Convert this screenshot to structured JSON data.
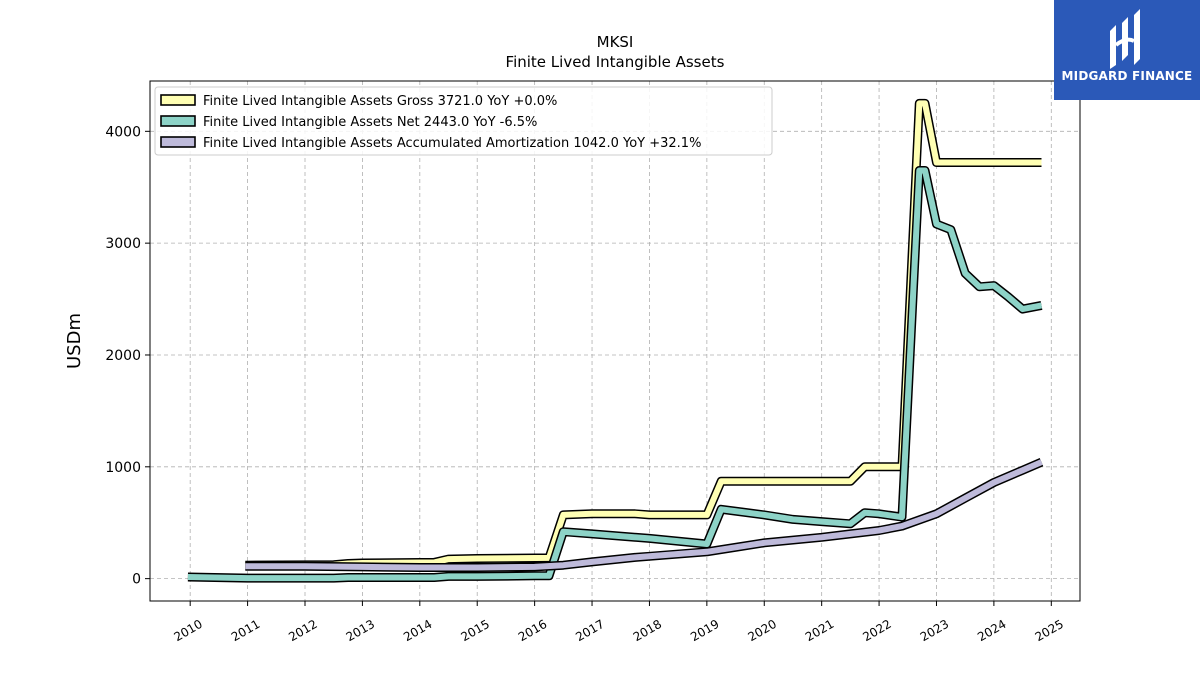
{
  "chart_data": {
    "type": "line",
    "title": "MKSI",
    "subtitle": "Finite Lived Intangible Assets",
    "ylabel": "USDm",
    "xlabel": "",
    "xlim": [
      2009.3,
      2025.5
    ],
    "ylim": [
      -200,
      4450
    ],
    "yticks": [
      0,
      1000,
      2000,
      3000,
      4000
    ],
    "xticks": [
      "2010",
      "2011",
      "2012",
      "2013",
      "2014",
      "2015",
      "2016",
      "2017",
      "2018",
      "2019",
      "2020",
      "2021",
      "2022",
      "2023",
      "2024",
      "2025"
    ],
    "grid": true,
    "legend_position": "top-left",
    "series": [
      {
        "name": "Finite Lived Intangible Assets Gross  3721.0 YoY +0.0%",
        "color": "#ffffb3",
        "points": [
          [
            2010.96,
            120
          ],
          [
            2012.5,
            125
          ],
          [
            2012.75,
            135
          ],
          [
            2013.0,
            140
          ],
          [
            2014.25,
            145
          ],
          [
            2014.5,
            175
          ],
          [
            2015.0,
            180
          ],
          [
            2016.25,
            185
          ],
          [
            2016.5,
            570
          ],
          [
            2017.0,
            580
          ],
          [
            2017.75,
            580
          ],
          [
            2018.0,
            570
          ],
          [
            2019.0,
            570
          ],
          [
            2019.25,
            870
          ],
          [
            2021.5,
            870
          ],
          [
            2021.75,
            1000
          ],
          [
            2022.4,
            1000
          ],
          [
            2022.7,
            4250
          ],
          [
            2022.8,
            4250
          ],
          [
            2023.0,
            3721
          ],
          [
            2024.83,
            3721
          ]
        ]
      },
      {
        "name": "Finite Lived Intangible Assets Net  2443.0 YoY -6.5%",
        "color": "#8dd3c7",
        "points": [
          [
            2009.96,
            15
          ],
          [
            2011.0,
            5
          ],
          [
            2012.0,
            5
          ],
          [
            2012.5,
            5
          ],
          [
            2012.75,
            10
          ],
          [
            2013.0,
            10
          ],
          [
            2014.25,
            10
          ],
          [
            2014.5,
            20
          ],
          [
            2015.0,
            20
          ],
          [
            2016.0,
            25
          ],
          [
            2016.25,
            25
          ],
          [
            2016.5,
            420
          ],
          [
            2017.0,
            400
          ],
          [
            2018.0,
            360
          ],
          [
            2019.0,
            310
          ],
          [
            2019.25,
            620
          ],
          [
            2020.0,
            570
          ],
          [
            2020.5,
            530
          ],
          [
            2021.0,
            510
          ],
          [
            2021.5,
            490
          ],
          [
            2021.75,
            590
          ],
          [
            2022.0,
            580
          ],
          [
            2022.4,
            550
          ],
          [
            2022.7,
            3650
          ],
          [
            2022.8,
            3650
          ],
          [
            2023.0,
            3170
          ],
          [
            2023.25,
            3120
          ],
          [
            2023.5,
            2730
          ],
          [
            2023.75,
            2610
          ],
          [
            2024.0,
            2620
          ],
          [
            2024.25,
            2520
          ],
          [
            2024.5,
            2410
          ],
          [
            2024.83,
            2443
          ]
        ]
      },
      {
        "name": "Finite Lived Intangible Assets Accumulated Amortization  1042.0 YoY +32.1%",
        "color": "#bebada",
        "points": [
          [
            2010.96,
            110
          ],
          [
            2012.0,
            110
          ],
          [
            2013.0,
            105
          ],
          [
            2014.0,
            100
          ],
          [
            2015.0,
            100
          ],
          [
            2016.0,
            105
          ],
          [
            2016.5,
            120
          ],
          [
            2017.0,
            150
          ],
          [
            2017.75,
            190
          ],
          [
            2018.0,
            200
          ],
          [
            2019.0,
            240
          ],
          [
            2019.5,
            280
          ],
          [
            2020.0,
            320
          ],
          [
            2021.0,
            370
          ],
          [
            2021.5,
            400
          ],
          [
            2022.0,
            430
          ],
          [
            2022.4,
            470
          ],
          [
            2023.0,
            580
          ],
          [
            2023.5,
            720
          ],
          [
            2024.0,
            860
          ],
          [
            2024.5,
            970
          ],
          [
            2024.83,
            1042
          ]
        ]
      }
    ]
  },
  "logo": {
    "text": "MIDGARD FINANCE",
    "bg": "#2b59b8"
  }
}
